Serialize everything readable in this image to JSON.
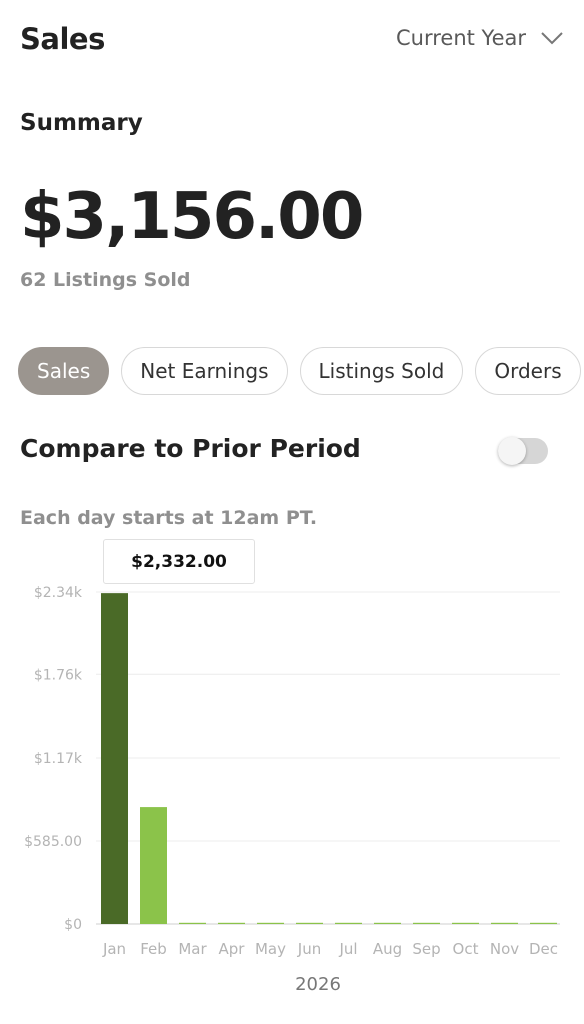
{
  "header": {
    "title": "Sales",
    "period_selector": "Current Year"
  },
  "summary": {
    "label": "Summary",
    "total": "$3,156.00",
    "listings_sold": "62 Listings Sold"
  },
  "tabs": [
    {
      "label": "Sales",
      "active": true
    },
    {
      "label": "Net Earnings",
      "active": false
    },
    {
      "label": "Listings Sold",
      "active": false
    },
    {
      "label": "Orders",
      "active": false
    }
  ],
  "compare": {
    "label": "Compare to Prior Period",
    "enabled": false
  },
  "note": "Each day starts at 12am PT.",
  "tooltip": {
    "value": "$2,332.00"
  },
  "colors": {
    "selected_bar": "#4a6a27",
    "bar": "#8bc34a",
    "active_tab": "#9b958f"
  },
  "chart_data": {
    "type": "bar",
    "categories": [
      "Jan",
      "Feb",
      "Mar",
      "Apr",
      "May",
      "Jun",
      "Jul",
      "Aug",
      "Sep",
      "Oct",
      "Nov",
      "Dec"
    ],
    "values": [
      2332,
      824,
      0,
      0,
      0,
      0,
      0,
      0,
      0,
      0,
      0,
      0
    ],
    "selected_index": 0,
    "y_ticks": [
      0,
      585,
      1170,
      1760,
      2340
    ],
    "y_tick_labels": [
      "$0",
      "$585.00",
      "$1.17k",
      "$1.76k",
      "$2.34k"
    ],
    "ylim": [
      0,
      2340
    ],
    "xlabel": "2026",
    "grid": true
  }
}
